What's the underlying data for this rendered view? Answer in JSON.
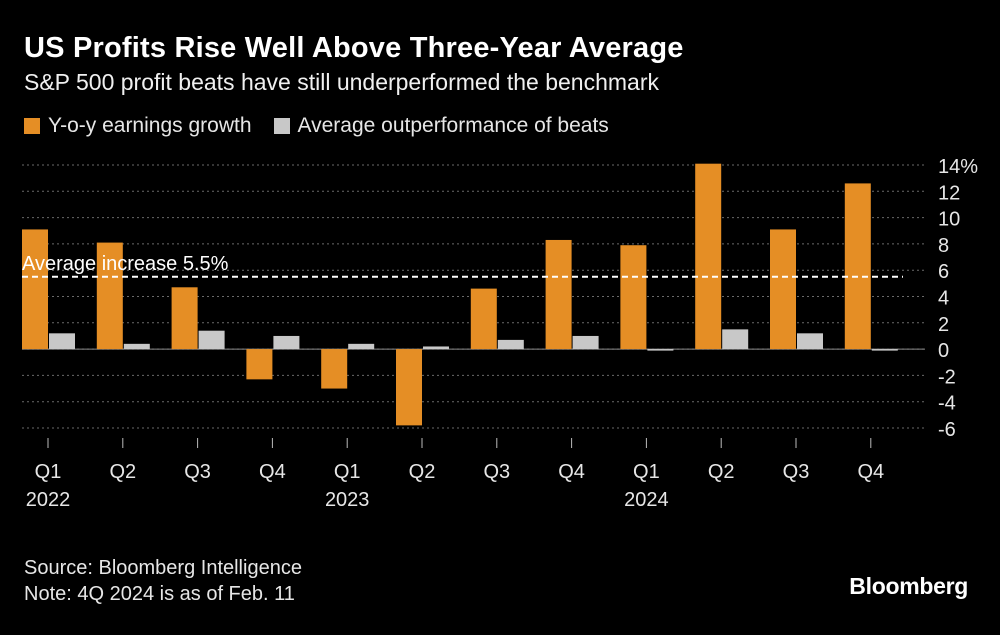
{
  "header": {
    "title": "US Profits Rise Well Above Three-Year Average",
    "subtitle": "S&P 500 profit beats have still underperformed the benchmark"
  },
  "legend": [
    {
      "label": "Y-o-y earnings growth",
      "color": "#e58e25"
    },
    {
      "label": "Average outperformance of beats",
      "color": "#c8c8c8"
    }
  ],
  "chart_data": {
    "type": "bar",
    "title": "US Profits Rise Well Above Three-Year Average",
    "categories": [
      "Q1",
      "Q2",
      "Q3",
      "Q4",
      "Q1",
      "Q2",
      "Q3",
      "Q4",
      "Q1",
      "Q2",
      "Q3",
      "Q4"
    ],
    "years": [
      "2022",
      "",
      "",
      "",
      "2023",
      "",
      "",
      "",
      "2024",
      "",
      "",
      ""
    ],
    "series": [
      {
        "name": "Y-o-y earnings growth",
        "color": "#e58e25",
        "values": [
          9.1,
          8.1,
          4.7,
          -2.3,
          -3.0,
          -5.8,
          4.6,
          8.3,
          7.9,
          14.1,
          9.1,
          12.6
        ]
      },
      {
        "name": "Average outperformance of beats",
        "color": "#c8c8c8",
        "values": [
          1.2,
          0.4,
          1.4,
          1.0,
          0.4,
          0.2,
          0.7,
          1.0,
          -0.1,
          1.5,
          1.2,
          -0.1
        ]
      }
    ],
    "ylim": [
      -6,
      14
    ],
    "yticks": [
      -6,
      -4,
      -2,
      0,
      2,
      4,
      6,
      8,
      10,
      12,
      14
    ],
    "ytick_labels": [
      "-6",
      "-4",
      "-2",
      "0",
      "2",
      "4",
      "6",
      "8",
      "10",
      "12",
      "14%"
    ],
    "reference_line": {
      "value": 5.5,
      "label": "Average increase 5.5%"
    },
    "xlabel": "",
    "ylabel": "",
    "grid": true,
    "legend_position": "top-left"
  },
  "footer": {
    "source": "Source: Bloomberg Intelligence",
    "note": "Note: 4Q 2024 is as of Feb. 11"
  },
  "brand": "Bloomberg"
}
